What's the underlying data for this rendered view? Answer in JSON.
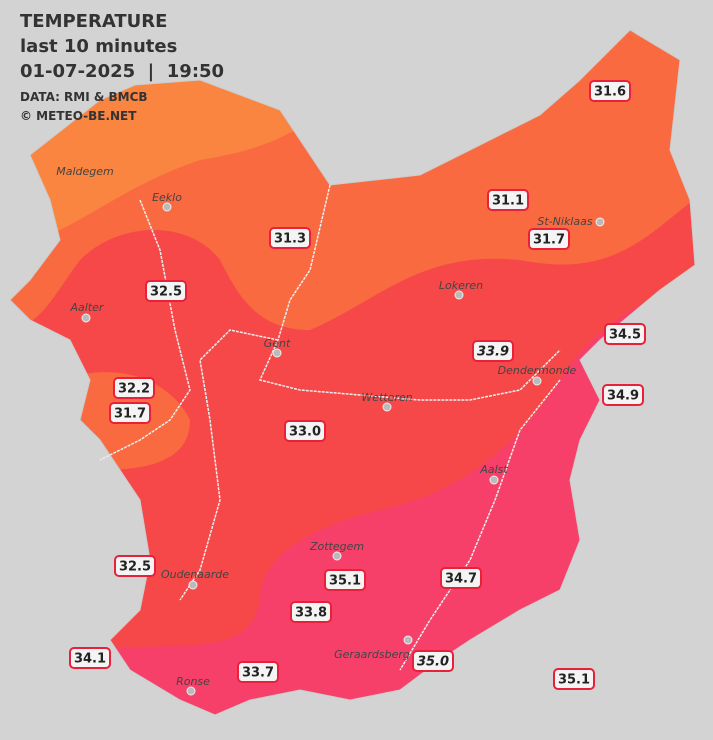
{
  "header": {
    "title": "TEMPERATURE",
    "subtitle": "last 10 minutes",
    "datetime": "01-07-2025  |  19:50",
    "source": "DATA: RMI & BMCB",
    "credit": "© METEO-BE.NET"
  },
  "cities": [
    "Maldegem",
    "Eeklo",
    "St-Niklaas",
    "Lokeren",
    "Aalter",
    "Gent",
    "Dendermonde",
    "Wetteren",
    "Aalst",
    "Zottegem",
    "Oudenaarde",
    "Geraardsberg",
    "Ronse"
  ],
  "stations": [
    "31.6",
    "31.1",
    "31.3",
    "31.7",
    "32.5",
    "34.5",
    "33.9",
    "34.9",
    "32.2",
    "31.7",
    "33.0",
    "32.5",
    "35.1",
    "34.7",
    "33.8",
    "34.1",
    "35.0",
    "33.7",
    "35.1"
  ]
}
